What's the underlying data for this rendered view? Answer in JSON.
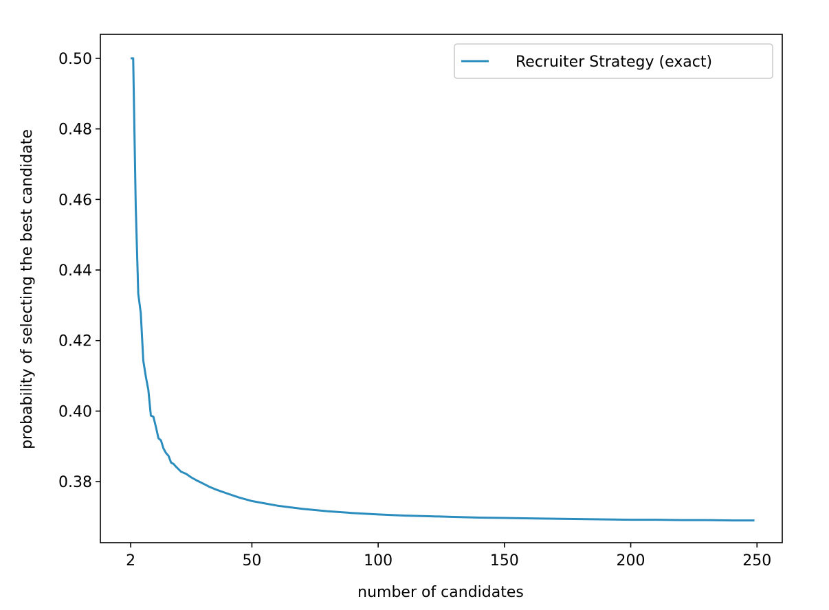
{
  "chart_data": {
    "type": "line",
    "title": "",
    "xlabel": "number of candidates",
    "ylabel": "probability of selecting the best candidate",
    "xlim": [
      -10,
      260
    ],
    "ylim": [
      0.3627,
      0.5068
    ],
    "xticks": [
      2,
      50,
      100,
      150,
      200,
      250
    ],
    "xtick_labels": [
      "2",
      "50",
      "100",
      "150",
      "200",
      "250"
    ],
    "yticks": [
      0.38,
      0.4,
      0.42,
      0.44,
      0.46,
      0.48,
      0.5
    ],
    "ytick_labels": [
      "0.38",
      "0.40",
      "0.42",
      "0.44",
      "0.46",
      "0.48",
      "0.50"
    ],
    "grid": false,
    "legend": {
      "position": "upper-right"
    },
    "series": [
      {
        "name": "Recruiter Strategy (exact)",
        "color": "#2b8cbe",
        "x": [
          2,
          3,
          4,
          5,
          6,
          7,
          8,
          9,
          10,
          11,
          12,
          13,
          14,
          15,
          16,
          17,
          18,
          19,
          20,
          22,
          24,
          26,
          28,
          30,
          33,
          36,
          40,
          45,
          50,
          60,
          70,
          80,
          90,
          100,
          110,
          120,
          130,
          140,
          150,
          160,
          170,
          180,
          190,
          200,
          210,
          220,
          230,
          240,
          249
        ],
        "y": [
          0.5,
          0.5,
          0.4583,
          0.4333,
          0.4278,
          0.4143,
          0.4098,
          0.406,
          0.3987,
          0.3984,
          0.3955,
          0.3923,
          0.3917,
          0.3894,
          0.3881,
          0.3873,
          0.3854,
          0.385,
          0.3842,
          0.3828,
          0.3822,
          0.3812,
          0.3804,
          0.3797,
          0.3786,
          0.3777,
          0.3767,
          0.3755,
          0.3745,
          0.3732,
          0.3723,
          0.3716,
          0.3711,
          0.3707,
          0.3704,
          0.3702,
          0.37,
          0.3698,
          0.3697,
          0.3696,
          0.3695,
          0.3694,
          0.3693,
          0.3692,
          0.3692,
          0.3691,
          0.3691,
          0.369,
          0.369
        ]
      }
    ]
  }
}
